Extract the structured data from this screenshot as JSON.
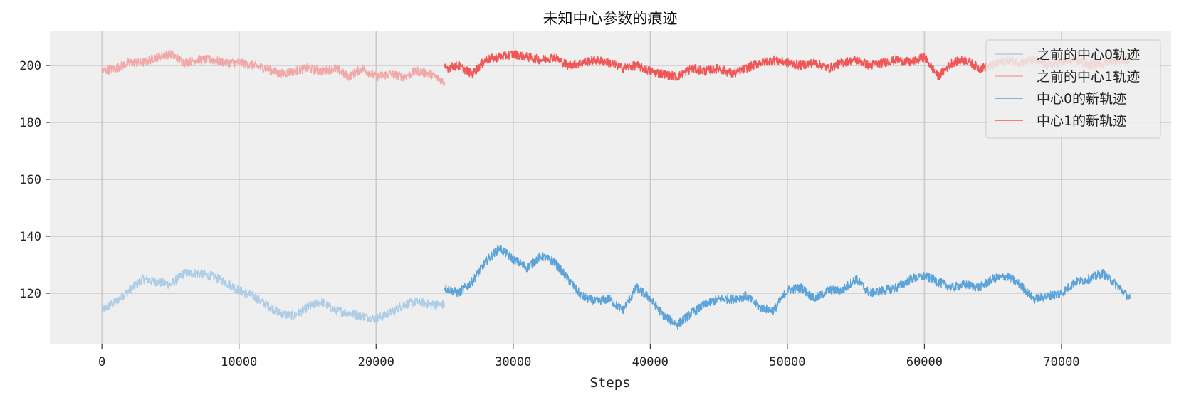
{
  "chart_data": {
    "type": "line",
    "title": "未知中心参数的痕迹",
    "xlabel": "Steps",
    "ylabel": "",
    "xlim": [
      -3800,
      78000
    ],
    "ylim": [
      102,
      212
    ],
    "xticks": [
      0,
      10000,
      20000,
      30000,
      40000,
      50000,
      60000,
      70000
    ],
    "yticks": [
      120,
      140,
      160,
      180,
      200
    ],
    "grid": true,
    "legend_position": "top-right",
    "series": [
      {
        "name": "之前的中心0轨迹",
        "color": "#aecde6",
        "x": [
          0,
          1000,
          2000,
          3000,
          4000,
          5000,
          6000,
          7000,
          8000,
          9000,
          10000,
          11000,
          12000,
          13000,
          14000,
          15000,
          16000,
          17000,
          18000,
          19000,
          20000,
          21000,
          22000,
          23000,
          24000,
          25000
        ],
        "y": [
          114,
          117,
          121,
          125,
          124,
          123,
          127,
          127,
          126,
          124,
          121,
          119,
          116,
          113,
          112,
          115,
          117,
          114,
          113,
          112,
          111,
          113,
          116,
          117,
          116,
          116
        ]
      },
      {
        "name": "之前的中心1轨迹",
        "color": "#f1a8a8",
        "x": [
          0,
          1000,
          2000,
          3000,
          4000,
          5000,
          6000,
          7000,
          8000,
          9000,
          10000,
          11000,
          12000,
          13000,
          14000,
          15000,
          16000,
          17000,
          18000,
          19000,
          20000,
          21000,
          22000,
          23000,
          24000,
          25000
        ],
        "y": [
          198,
          199,
          201,
          201,
          203,
          204,
          201,
          202,
          202,
          201,
          201,
          200,
          199,
          197,
          198,
          199,
          198,
          199,
          196,
          199,
          196,
          197,
          196,
          198,
          197,
          194
        ]
      },
      {
        "name": "中心0的新轨迹",
        "color": "#5ba3d9",
        "x": [
          25000,
          26000,
          27000,
          28000,
          29000,
          30000,
          31000,
          32000,
          33000,
          34000,
          35000,
          36000,
          37000,
          38000,
          39000,
          40000,
          41000,
          42000,
          43000,
          44000,
          45000,
          46000,
          47000,
          48000,
          49000,
          50000,
          51000,
          52000,
          53000,
          54000,
          55000,
          56000,
          57000,
          58000,
          59000,
          60000,
          61000,
          62000,
          63000,
          64000,
          65000,
          66000,
          67000,
          68000,
          69000,
          70000,
          71000,
          72000,
          73000,
          74000,
          75000
        ],
        "y": [
          122,
          120,
          124,
          131,
          136,
          132,
          129,
          133,
          131,
          125,
          119,
          117,
          118,
          114,
          122,
          118,
          112,
          109,
          113,
          116,
          118,
          118,
          119,
          115,
          114,
          121,
          122,
          118,
          121,
          121,
          125,
          120,
          121,
          122,
          125,
          126,
          124,
          122,
          123,
          122,
          125,
          126,
          123,
          118,
          119,
          120,
          124,
          125,
          127,
          123,
          118
        ]
      },
      {
        "name": "中心1的新轨迹",
        "color": "#f05656",
        "x": [
          25000,
          26000,
          27000,
          28000,
          29000,
          30000,
          31000,
          32000,
          33000,
          34000,
          35000,
          36000,
          37000,
          38000,
          39000,
          40000,
          41000,
          42000,
          43000,
          44000,
          45000,
          46000,
          47000,
          48000,
          49000,
          50000,
          51000,
          52000,
          53000,
          54000,
          55000,
          56000,
          57000,
          58000,
          59000,
          60000,
          61000,
          62000,
          63000,
          64000,
          65000,
          66000,
          67000,
          68000,
          69000,
          70000,
          71000,
          72000,
          73000,
          74000,
          75000
        ],
        "y": [
          199,
          200,
          197,
          202,
          203,
          204,
          203,
          202,
          203,
          200,
          201,
          202,
          201,
          199,
          200,
          198,
          197,
          196,
          199,
          198,
          199,
          197,
          199,
          201,
          202,
          201,
          200,
          201,
          199,
          201,
          202,
          200,
          201,
          202,
          201,
          203,
          196,
          201,
          202,
          199,
          200,
          202,
          201,
          202,
          200,
          201,
          202,
          200,
          201,
          202,
          202
        ]
      }
    ]
  }
}
